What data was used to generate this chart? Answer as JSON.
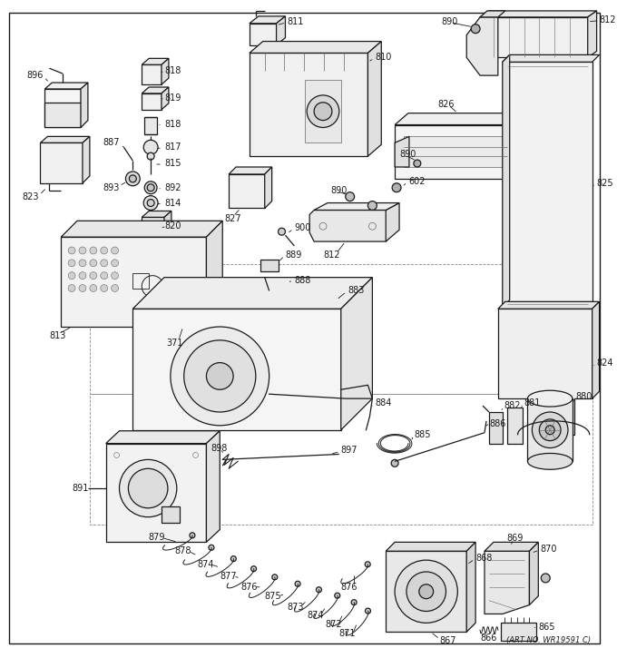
{
  "art_no": "(ART NO. WR19591 C)",
  "bg_color": "#ffffff",
  "line_color": "#1a1a1a",
  "gray": "#666666",
  "light_gray": "#cccccc",
  "figsize": [
    6.8,
    7.25
  ],
  "dpi": 100,
  "lw_main": 0.9,
  "lw_thin": 0.5,
  "lw_thick": 1.2,
  "fs_label": 7.0
}
